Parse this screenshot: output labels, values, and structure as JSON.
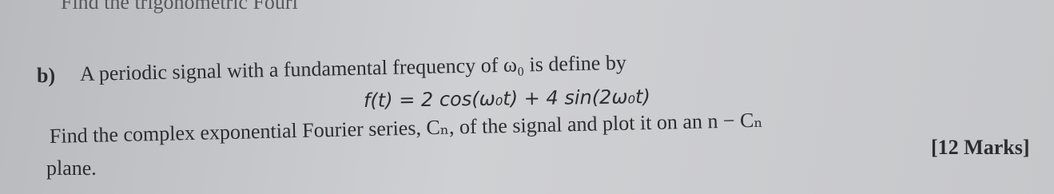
{
  "header": {
    "cut_text": "Find the trigonometric Fouri"
  },
  "question": {
    "label": "b)",
    "intro": "A periodic signal with a fundamental frequency of ω₀ is define by",
    "equation": "f(t) = 2 cos(ω₀t) + 4 sin(2ω₀t)",
    "task": "Find the complex exponential Fourier series, Cₙ, of the signal and plot it on an n − Cₙ",
    "marks": "[12 Marks]",
    "continuation": "plane."
  }
}
